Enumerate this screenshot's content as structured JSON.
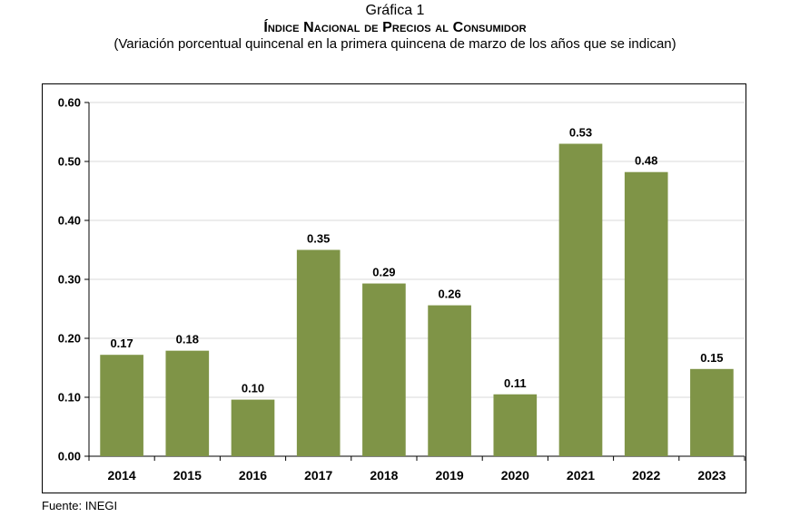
{
  "header": {
    "label": "Gráfica 1",
    "title": "Índice Nacional de Precios al Consumidor",
    "subtitle": "(Variación porcentual quincenal en la primera quincena de marzo de los años que se indican)"
  },
  "source": "Fuente: INEGI",
  "chart_data": {
    "type": "bar",
    "title": "Índice Nacional de Precios al Consumidor",
    "subtitle": "(Variación porcentual quincenal en la primera quincena de marzo de los años que se indican)",
    "categories": [
      "2014",
      "2015",
      "2016",
      "2017",
      "2018",
      "2019",
      "2020",
      "2021",
      "2022",
      "2023"
    ],
    "values": [
      0.172,
      0.179,
      0.096,
      0.35,
      0.293,
      0.256,
      0.105,
      0.53,
      0.482,
      0.148
    ],
    "data_labels": [
      "0.17",
      "0.18",
      "0.10",
      "0.35",
      "0.29",
      "0.26",
      "0.11",
      "0.53",
      "0.48",
      "0.15"
    ],
    "ylim": [
      0,
      0.6
    ],
    "yticks": [
      0,
      0.1,
      0.2,
      0.3,
      0.4,
      0.5,
      0.6
    ],
    "ytick_labels": [
      "0.00",
      "0.10",
      "0.20",
      "0.30",
      "0.40",
      "0.50",
      "0.60"
    ],
    "xlabel": "",
    "ylabel": "",
    "grid": true,
    "bar_color": "#7f9447",
    "grid_color": "#d9d9d9"
  }
}
